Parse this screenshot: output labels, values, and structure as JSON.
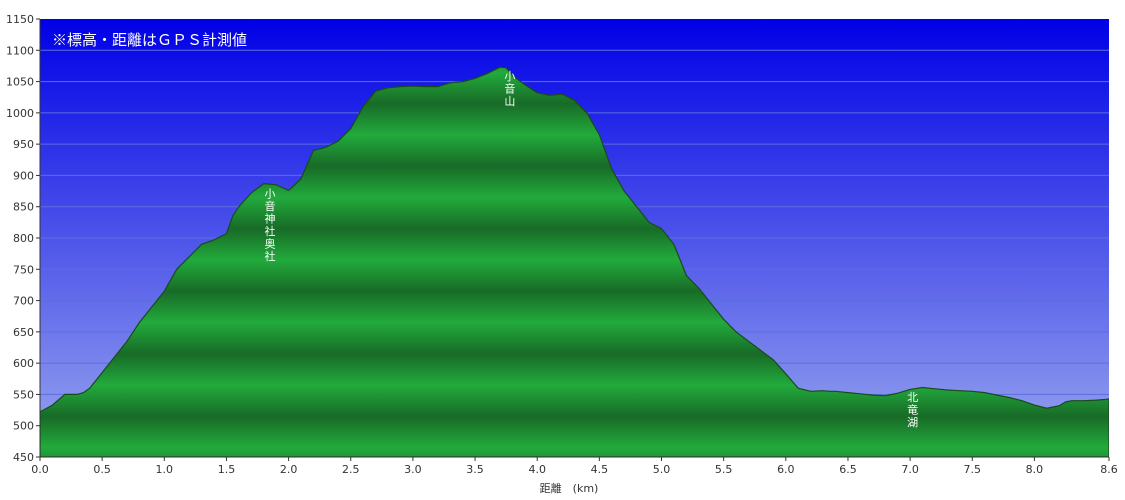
{
  "chart_data": {
    "type": "area",
    "title": "",
    "note": "※標高・距離はＧＰＳ計測値",
    "xlabel": "距離　(km)",
    "ylabel": "",
    "xlim": [
      0,
      8.6
    ],
    "ylim": [
      450,
      1150
    ],
    "x_ticks": [
      "0.0",
      "0.5",
      "1.0",
      "1.5",
      "2.0",
      "2.5",
      "3.0",
      "3.5",
      "4.0",
      "4.5",
      "5.0",
      "5.5",
      "6.0",
      "6.5",
      "7.0",
      "7.5",
      "8.0",
      "8.6"
    ],
    "x_tick_values": [
      0,
      0.5,
      1.0,
      1.5,
      2.0,
      2.5,
      3.0,
      3.5,
      4.0,
      4.5,
      5.0,
      5.5,
      6.0,
      6.5,
      7.0,
      7.5,
      8.0,
      8.6
    ],
    "y_ticks": [
      450,
      500,
      550,
      600,
      650,
      700,
      750,
      800,
      850,
      900,
      950,
      1000,
      1050,
      1100,
      1150
    ],
    "grid": true,
    "colors": {
      "sky_top": "#0000e6",
      "sky_bottom": "#9aa8ee",
      "fill_light": "#22aa3c",
      "fill_dark": "#186b27",
      "outline": "#1a4a1a"
    },
    "series": [
      {
        "x": [
          0.0,
          0.1,
          0.2,
          0.3,
          0.35,
          0.4,
          0.5,
          0.6,
          0.7,
          0.8,
          0.9,
          1.0,
          1.1,
          1.2,
          1.3,
          1.4,
          1.5,
          1.55,
          1.6,
          1.7,
          1.8,
          1.85,
          1.9,
          2.0,
          2.05,
          2.1,
          2.2,
          2.3,
          2.4,
          2.5,
          2.6,
          2.7,
          2.8,
          2.9,
          3.0,
          3.1,
          3.2,
          3.3,
          3.4,
          3.5,
          3.6,
          3.7,
          3.75,
          3.8,
          3.9,
          4.0,
          4.1,
          4.2,
          4.3,
          4.4,
          4.5,
          4.6,
          4.7,
          4.8,
          4.9,
          5.0,
          5.1,
          5.2,
          5.3,
          5.4,
          5.5,
          5.6,
          5.7,
          5.8,
          5.9,
          6.0,
          6.1,
          6.2,
          6.3,
          6.35,
          6.4,
          6.5,
          6.6,
          6.7,
          6.8,
          6.9,
          7.0,
          7.1,
          7.2,
          7.3,
          7.4,
          7.5,
          7.6,
          7.7,
          7.8,
          7.9,
          8.0,
          8.1,
          8.2,
          8.25,
          8.3,
          8.4,
          8.5,
          8.58,
          8.6
        ],
        "values": [
          522,
          533,
          550,
          550,
          553,
          560,
          585,
          610,
          635,
          665,
          690,
          715,
          750,
          770,
          790,
          797,
          807,
          835,
          850,
          872,
          887,
          886,
          885,
          876,
          885,
          895,
          940,
          945,
          955,
          975,
          1010,
          1035,
          1040,
          1042,
          1043,
          1042,
          1042,
          1048,
          1050,
          1055,
          1063,
          1073,
          1072,
          1060,
          1045,
          1032,
          1028,
          1030,
          1020,
          1000,
          965,
          910,
          875,
          850,
          825,
          815,
          790,
          740,
          720,
          695,
          670,
          650,
          635,
          620,
          605,
          583,
          560,
          555,
          556,
          555,
          555,
          553,
          551,
          549,
          548,
          552,
          558,
          561,
          559,
          557,
          556,
          555,
          553,
          549,
          545,
          540,
          533,
          528,
          532,
          538,
          540,
          540,
          541,
          542,
          543
        ]
      }
    ],
    "annotations": [
      {
        "text": "小音神社奥社",
        "x": 1.85,
        "y": 855
      },
      {
        "text": "小音山",
        "x": 3.78,
        "y": 1043
      },
      {
        "text": "北竜湖",
        "x": 7.02,
        "y": 530
      }
    ]
  }
}
